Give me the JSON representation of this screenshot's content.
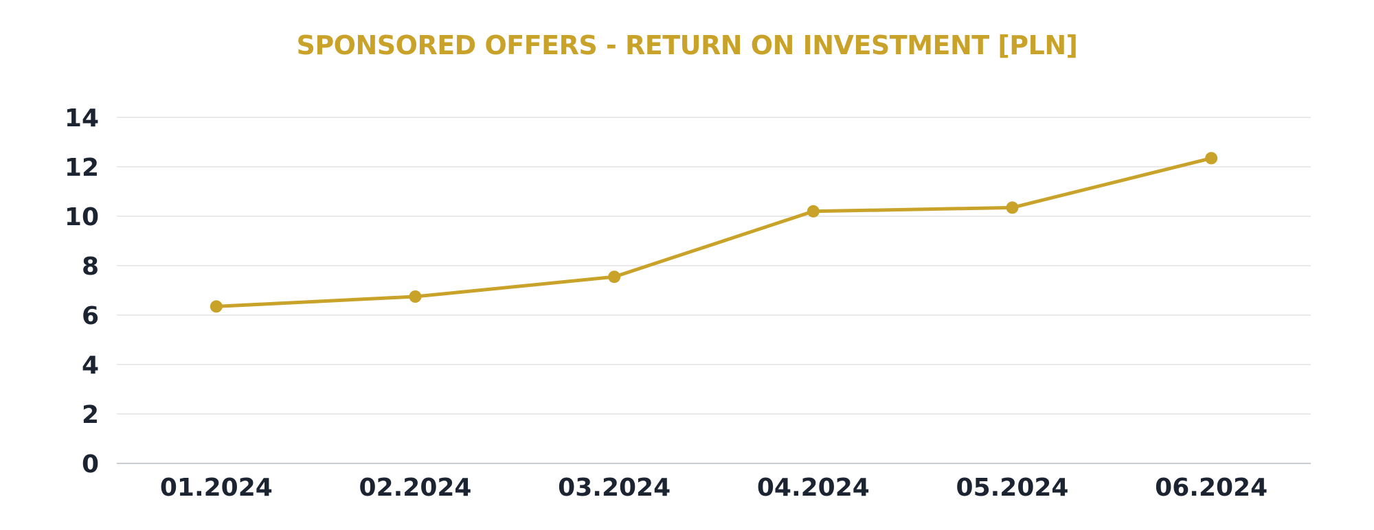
{
  "chart_data": {
    "type": "line",
    "title": "SPONSORED OFFERS - RETURN ON INVESTMENT [PLN]",
    "xlabel": "",
    "ylabel": "",
    "categories": [
      "01.2024",
      "02.2024",
      "03.2024",
      "04.2024",
      "05.2024",
      "06.2024"
    ],
    "series": [
      {
        "values": [
          6.35,
          6.75,
          7.55,
          10.2,
          10.35,
          12.35
        ],
        "color": "#C9A22A"
      }
    ],
    "ylim": [
      0,
      14
    ],
    "yticks": [
      0,
      2,
      4,
      6,
      8,
      10,
      12,
      14
    ],
    "grid": true,
    "legend": "none"
  },
  "colors": {
    "title": "#C9A22A",
    "axis_text": "#1B2430",
    "grid": "#E3E3E3",
    "baseline": "#C8CDD3"
  }
}
